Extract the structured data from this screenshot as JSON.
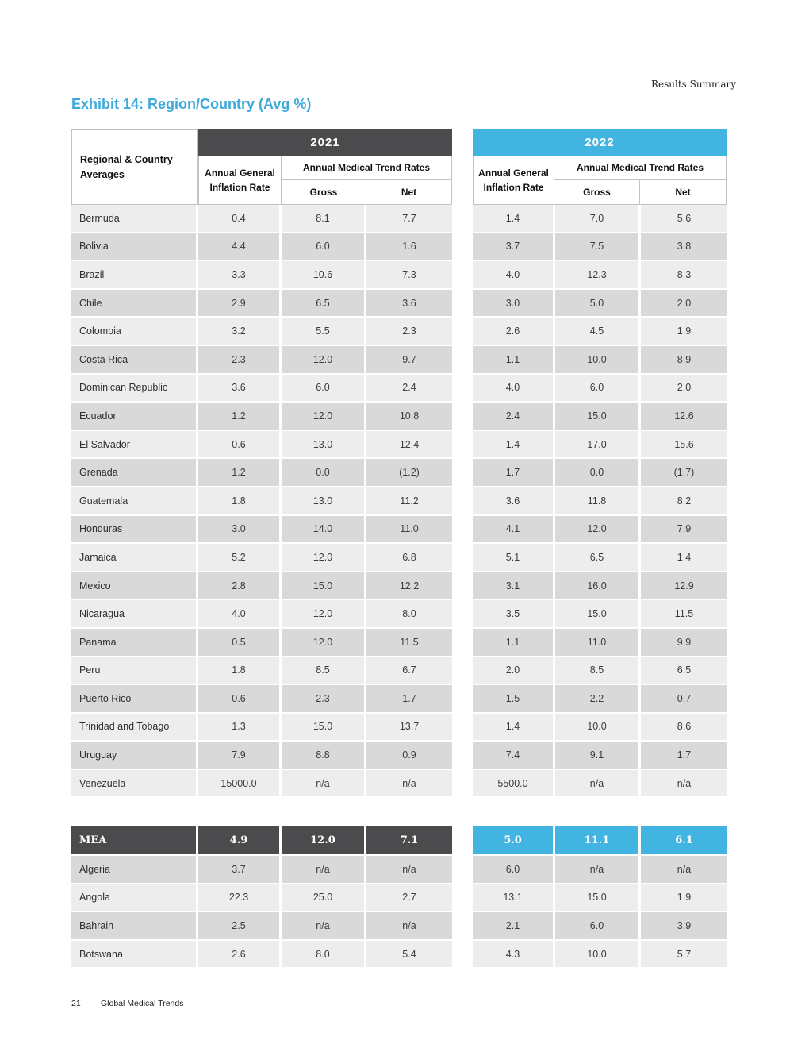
{
  "page": {
    "eyebrow": "Results Summary",
    "title": "Exhibit 14: Region/Country (Avg %)",
    "footer_page_number": "21",
    "footer_text": "Global Medical Trends"
  },
  "colors": {
    "accent_blue": "#41b4e1",
    "dark_gray": "#4b4b4d",
    "title_blue": "#3fa9dc",
    "row_light": "#ededee",
    "row_dark": "#d9d9d9"
  },
  "table": {
    "row_header_line1": "Regional & Country",
    "row_header_line2": "Averages",
    "year_headers": [
      "2021",
      "2022"
    ],
    "col_group_headers": {
      "inflation": "Annual General Inflation Rate",
      "trend": "Annual Medical Trend Rates",
      "gross": "Gross",
      "net": "Net"
    },
    "rows": [
      {
        "country": "Bermuda",
        "v2021": [
          "0.4",
          "8.1",
          "7.7"
        ],
        "v2022": [
          "1.4",
          "7.0",
          "5.6"
        ]
      },
      {
        "country": "Bolivia",
        "v2021": [
          "4.4",
          "6.0",
          "1.6"
        ],
        "v2022": [
          "3.7",
          "7.5",
          "3.8"
        ]
      },
      {
        "country": "Brazil",
        "v2021": [
          "3.3",
          "10.6",
          "7.3"
        ],
        "v2022": [
          "4.0",
          "12.3",
          "8.3"
        ]
      },
      {
        "country": "Chile",
        "v2021": [
          "2.9",
          "6.5",
          "3.6"
        ],
        "v2022": [
          "3.0",
          "5.0",
          "2.0"
        ]
      },
      {
        "country": "Colombia",
        "v2021": [
          "3.2",
          "5.5",
          "2.3"
        ],
        "v2022": [
          "2.6",
          "4.5",
          "1.9"
        ]
      },
      {
        "country": "Costa Rica",
        "v2021": [
          "2.3",
          "12.0",
          "9.7"
        ],
        "v2022": [
          "1.1",
          "10.0",
          "8.9"
        ]
      },
      {
        "country": "Dominican Republic",
        "v2021": [
          "3.6",
          "6.0",
          "2.4"
        ],
        "v2022": [
          "4.0",
          "6.0",
          "2.0"
        ]
      },
      {
        "country": "Ecuador",
        "v2021": [
          "1.2",
          "12.0",
          "10.8"
        ],
        "v2022": [
          "2.4",
          "15.0",
          "12.6"
        ]
      },
      {
        "country": "El Salvador",
        "v2021": [
          "0.6",
          "13.0",
          "12.4"
        ],
        "v2022": [
          "1.4",
          "17.0",
          "15.6"
        ]
      },
      {
        "country": "Grenada",
        "v2021": [
          "1.2",
          "0.0",
          "(1.2)"
        ],
        "v2022": [
          "1.7",
          "0.0",
          "(1.7)"
        ]
      },
      {
        "country": "Guatemala",
        "v2021": [
          "1.8",
          "13.0",
          "11.2"
        ],
        "v2022": [
          "3.6",
          "11.8",
          "8.2"
        ]
      },
      {
        "country": "Honduras",
        "v2021": [
          "3.0",
          "14.0",
          "11.0"
        ],
        "v2022": [
          "4.1",
          "12.0",
          "7.9"
        ]
      },
      {
        "country": "Jamaica",
        "v2021": [
          "5.2",
          "12.0",
          "6.8"
        ],
        "v2022": [
          "5.1",
          "6.5",
          "1.4"
        ]
      },
      {
        "country": "Mexico",
        "v2021": [
          "2.8",
          "15.0",
          "12.2"
        ],
        "v2022": [
          "3.1",
          "16.0",
          "12.9"
        ]
      },
      {
        "country": "Nicaragua",
        "v2021": [
          "4.0",
          "12.0",
          "8.0"
        ],
        "v2022": [
          "3.5",
          "15.0",
          "11.5"
        ]
      },
      {
        "country": "Panama",
        "v2021": [
          "0.5",
          "12.0",
          "11.5"
        ],
        "v2022": [
          "1.1",
          "11.0",
          "9.9"
        ]
      },
      {
        "country": "Peru",
        "v2021": [
          "1.8",
          "8.5",
          "6.7"
        ],
        "v2022": [
          "2.0",
          "8.5",
          "6.5"
        ]
      },
      {
        "country": "Puerto Rico",
        "v2021": [
          "0.6",
          "2.3",
          "1.7"
        ],
        "v2022": [
          "1.5",
          "2.2",
          "0.7"
        ]
      },
      {
        "country": "Trinidad and Tobago",
        "v2021": [
          "1.3",
          "15.0",
          "13.7"
        ],
        "v2022": [
          "1.4",
          "10.0",
          "8.6"
        ]
      },
      {
        "country": "Uruguay",
        "v2021": [
          "7.9",
          "8.8",
          "0.9"
        ],
        "v2022": [
          "7.4",
          "9.1",
          "1.7"
        ]
      },
      {
        "country": "Venezuela",
        "v2021": [
          "15000.0",
          "n/a",
          "n/a"
        ],
        "v2022": [
          "5500.0",
          "n/a",
          "n/a"
        ]
      }
    ],
    "region_row": {
      "label": "MEA",
      "v2021": [
        "4.9",
        "12.0",
        "7.1"
      ],
      "v2022": [
        "5.0",
        "11.1",
        "6.1"
      ]
    },
    "region_rows": [
      {
        "country": "Algeria",
        "v2021": [
          "3.7",
          "n/a",
          "n/a"
        ],
        "v2022": [
          "6.0",
          "n/a",
          "n/a"
        ]
      },
      {
        "country": "Angola",
        "v2021": [
          "22.3",
          "25.0",
          "2.7"
        ],
        "v2022": [
          "13.1",
          "15.0",
          "1.9"
        ]
      },
      {
        "country": "Bahrain",
        "v2021": [
          "2.5",
          "n/a",
          "n/a"
        ],
        "v2022": [
          "2.1",
          "6.0",
          "3.9"
        ]
      },
      {
        "country": "Botswana",
        "v2021": [
          "2.6",
          "8.0",
          "5.4"
        ],
        "v2022": [
          "4.3",
          "10.0",
          "5.7"
        ]
      }
    ]
  }
}
